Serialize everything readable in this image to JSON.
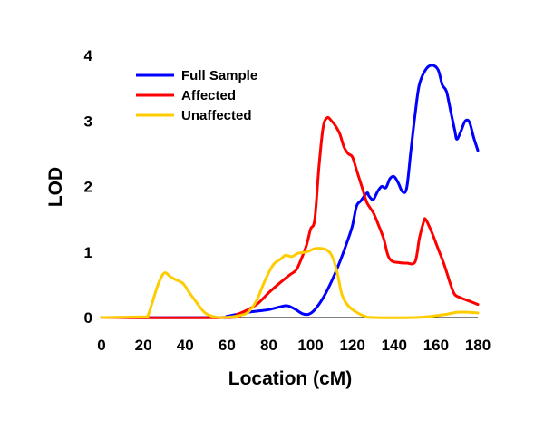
{
  "chart_data": {
    "type": "line",
    "title": "",
    "xlabel": "Location (cM)",
    "ylabel": "LOD",
    "xlim": [
      0,
      180
    ],
    "ylim": [
      0,
      4
    ],
    "xticks": [
      0,
      20,
      40,
      60,
      80,
      100,
      120,
      140,
      160,
      180
    ],
    "yticks": [
      0,
      1,
      2,
      3,
      4
    ],
    "grid": false,
    "legend": "top-left",
    "series": [
      {
        "name": "Full Sample",
        "color": "#0000ff",
        "points": [
          [
            0,
            0
          ],
          [
            55,
            0
          ],
          [
            60,
            0.02
          ],
          [
            65,
            0.05
          ],
          [
            70,
            0.08
          ],
          [
            75,
            0.1
          ],
          [
            80,
            0.12
          ],
          [
            85,
            0.16
          ],
          [
            88,
            0.18
          ],
          [
            90,
            0.17
          ],
          [
            93,
            0.12
          ],
          [
            96,
            0.06
          ],
          [
            99,
            0.05
          ],
          [
            102,
            0.12
          ],
          [
            106,
            0.3
          ],
          [
            110,
            0.55
          ],
          [
            114,
            0.85
          ],
          [
            118,
            1.2
          ],
          [
            120,
            1.4
          ],
          [
            122,
            1.7
          ],
          [
            124,
            1.78
          ],
          [
            127,
            1.9
          ],
          [
            128,
            1.85
          ],
          [
            130,
            1.8
          ],
          [
            132,
            1.92
          ],
          [
            134,
            2.0
          ],
          [
            136,
            1.98
          ],
          [
            138,
            2.12
          ],
          [
            140,
            2.15
          ],
          [
            142,
            2.05
          ],
          [
            144,
            1.92
          ],
          [
            146,
            1.98
          ],
          [
            148,
            2.55
          ],
          [
            150,
            3.1
          ],
          [
            152,
            3.55
          ],
          [
            155,
            3.78
          ],
          [
            158,
            3.85
          ],
          [
            161,
            3.78
          ],
          [
            163,
            3.55
          ],
          [
            165,
            3.45
          ],
          [
            167,
            3.15
          ],
          [
            169,
            2.85
          ],
          [
            170,
            2.72
          ],
          [
            172,
            2.85
          ],
          [
            174,
            3.0
          ],
          [
            176,
            2.98
          ],
          [
            178,
            2.75
          ],
          [
            180,
            2.55
          ]
        ]
      },
      {
        "name": "Affected",
        "color": "#ff0000",
        "points": [
          [
            0,
            0
          ],
          [
            60,
            0
          ],
          [
            65,
            0.05
          ],
          [
            70,
            0.12
          ],
          [
            75,
            0.22
          ],
          [
            80,
            0.38
          ],
          [
            85,
            0.52
          ],
          [
            90,
            0.65
          ],
          [
            93,
            0.72
          ],
          [
            95,
            0.85
          ],
          [
            98,
            1.1
          ],
          [
            100,
            1.35
          ],
          [
            102,
            1.5
          ],
          [
            104,
            2.3
          ],
          [
            106,
            2.9
          ],
          [
            108,
            3.05
          ],
          [
            110,
            3.0
          ],
          [
            112,
            2.92
          ],
          [
            114,
            2.8
          ],
          [
            116,
            2.6
          ],
          [
            118,
            2.5
          ],
          [
            120,
            2.45
          ],
          [
            122,
            2.25
          ],
          [
            125,
            1.95
          ],
          [
            127,
            1.75
          ],
          [
            130,
            1.6
          ],
          [
            132,
            1.45
          ],
          [
            135,
            1.2
          ],
          [
            137,
            0.95
          ],
          [
            139,
            0.86
          ],
          [
            142,
            0.84
          ],
          [
            146,
            0.83
          ],
          [
            150,
            0.85
          ],
          [
            152,
            1.2
          ],
          [
            154,
            1.45
          ],
          [
            155,
            1.5
          ],
          [
            158,
            1.3
          ],
          [
            161,
            1.05
          ],
          [
            164,
            0.8
          ],
          [
            167,
            0.5
          ],
          [
            169,
            0.35
          ],
          [
            172,
            0.3
          ],
          [
            176,
            0.25
          ],
          [
            180,
            0.2
          ]
        ]
      },
      {
        "name": "Unaffected",
        "color": "#ffcc00",
        "points": [
          [
            0,
            0
          ],
          [
            20,
            0.01
          ],
          [
            22,
            0.02
          ],
          [
            24,
            0.2
          ],
          [
            27,
            0.5
          ],
          [
            30,
            0.68
          ],
          [
            33,
            0.62
          ],
          [
            36,
            0.57
          ],
          [
            39,
            0.52
          ],
          [
            42,
            0.38
          ],
          [
            45,
            0.25
          ],
          [
            48,
            0.12
          ],
          [
            50,
            0.06
          ],
          [
            53,
            0.02
          ],
          [
            57,
            0.0
          ],
          [
            62,
            0.01
          ],
          [
            66,
            0.03
          ],
          [
            70,
            0.08
          ],
          [
            74,
            0.25
          ],
          [
            78,
            0.55
          ],
          [
            82,
            0.8
          ],
          [
            86,
            0.9
          ],
          [
            88,
            0.95
          ],
          [
            91,
            0.93
          ],
          [
            94,
            0.98
          ],
          [
            98,
            1.0
          ],
          [
            102,
            1.05
          ],
          [
            106,
            1.05
          ],
          [
            109,
            1.0
          ],
          [
            111,
            0.88
          ],
          [
            113,
            0.65
          ],
          [
            115,
            0.35
          ],
          [
            118,
            0.18
          ],
          [
            122,
            0.08
          ],
          [
            126,
            0.02
          ],
          [
            130,
            0.0
          ],
          [
            150,
            0.0
          ],
          [
            158,
            0.02
          ],
          [
            165,
            0.05
          ],
          [
            170,
            0.08
          ],
          [
            176,
            0.08
          ],
          [
            180,
            0.07
          ]
        ]
      }
    ]
  }
}
